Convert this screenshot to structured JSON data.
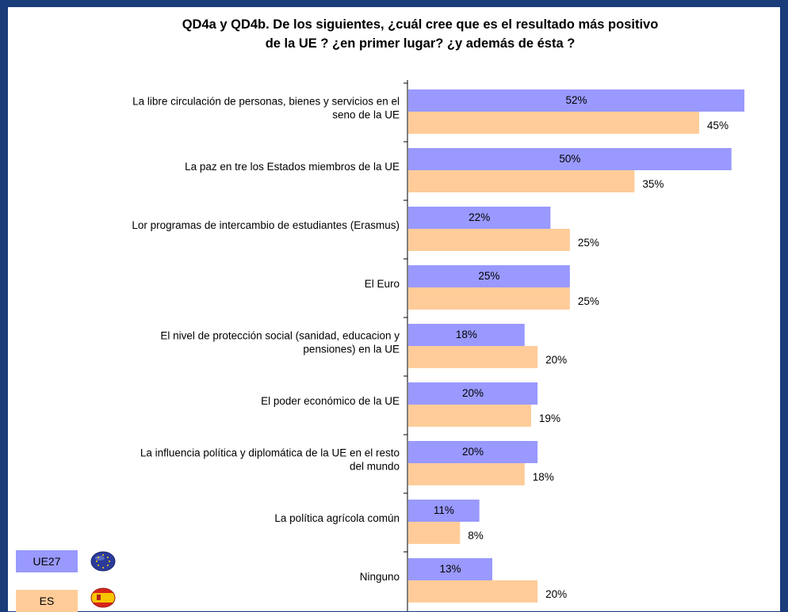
{
  "chart_data": {
    "type": "bar",
    "orientation": "horizontal",
    "title": "QD4a y QD4b. De los siguientes, ¿cuál cree que es el resultado más positivo\nde la UE ? ¿en primer lugar? ¿y además de ésta ?",
    "categories": [
      "La libre circulación de personas, bienes y servicios  en el seno de la UE",
      "La paz en tre los Estados miembros de la UE",
      "Lor programas de intercambio de estudiantes (Erasmus)",
      "El Euro",
      "El nivel de protección social (sanidad, educacion y pensiones) en la UE",
      "El poder económico de la UE",
      "La influencia política y diplomática de la UE en el resto del mundo",
      "La política agrícola común",
      "Ninguno"
    ],
    "series": [
      {
        "name": "UE27",
        "color": "#9999ff",
        "values": [
          52,
          50,
          22,
          25,
          18,
          20,
          20,
          11,
          13
        ]
      },
      {
        "name": "ES",
        "color": "#ffcc99",
        "values": [
          45,
          35,
          25,
          25,
          20,
          19,
          18,
          8,
          20
        ]
      }
    ],
    "value_suffix": "%",
    "xlim": [
      0,
      52
    ],
    "grid": false,
    "legend_position": "bottom-left"
  },
  "legend": {
    "ue27_label": "UE27",
    "es_label": "ES",
    "ue27_icon": "eu-flag-icon",
    "es_icon": "spain-flag-icon"
  }
}
